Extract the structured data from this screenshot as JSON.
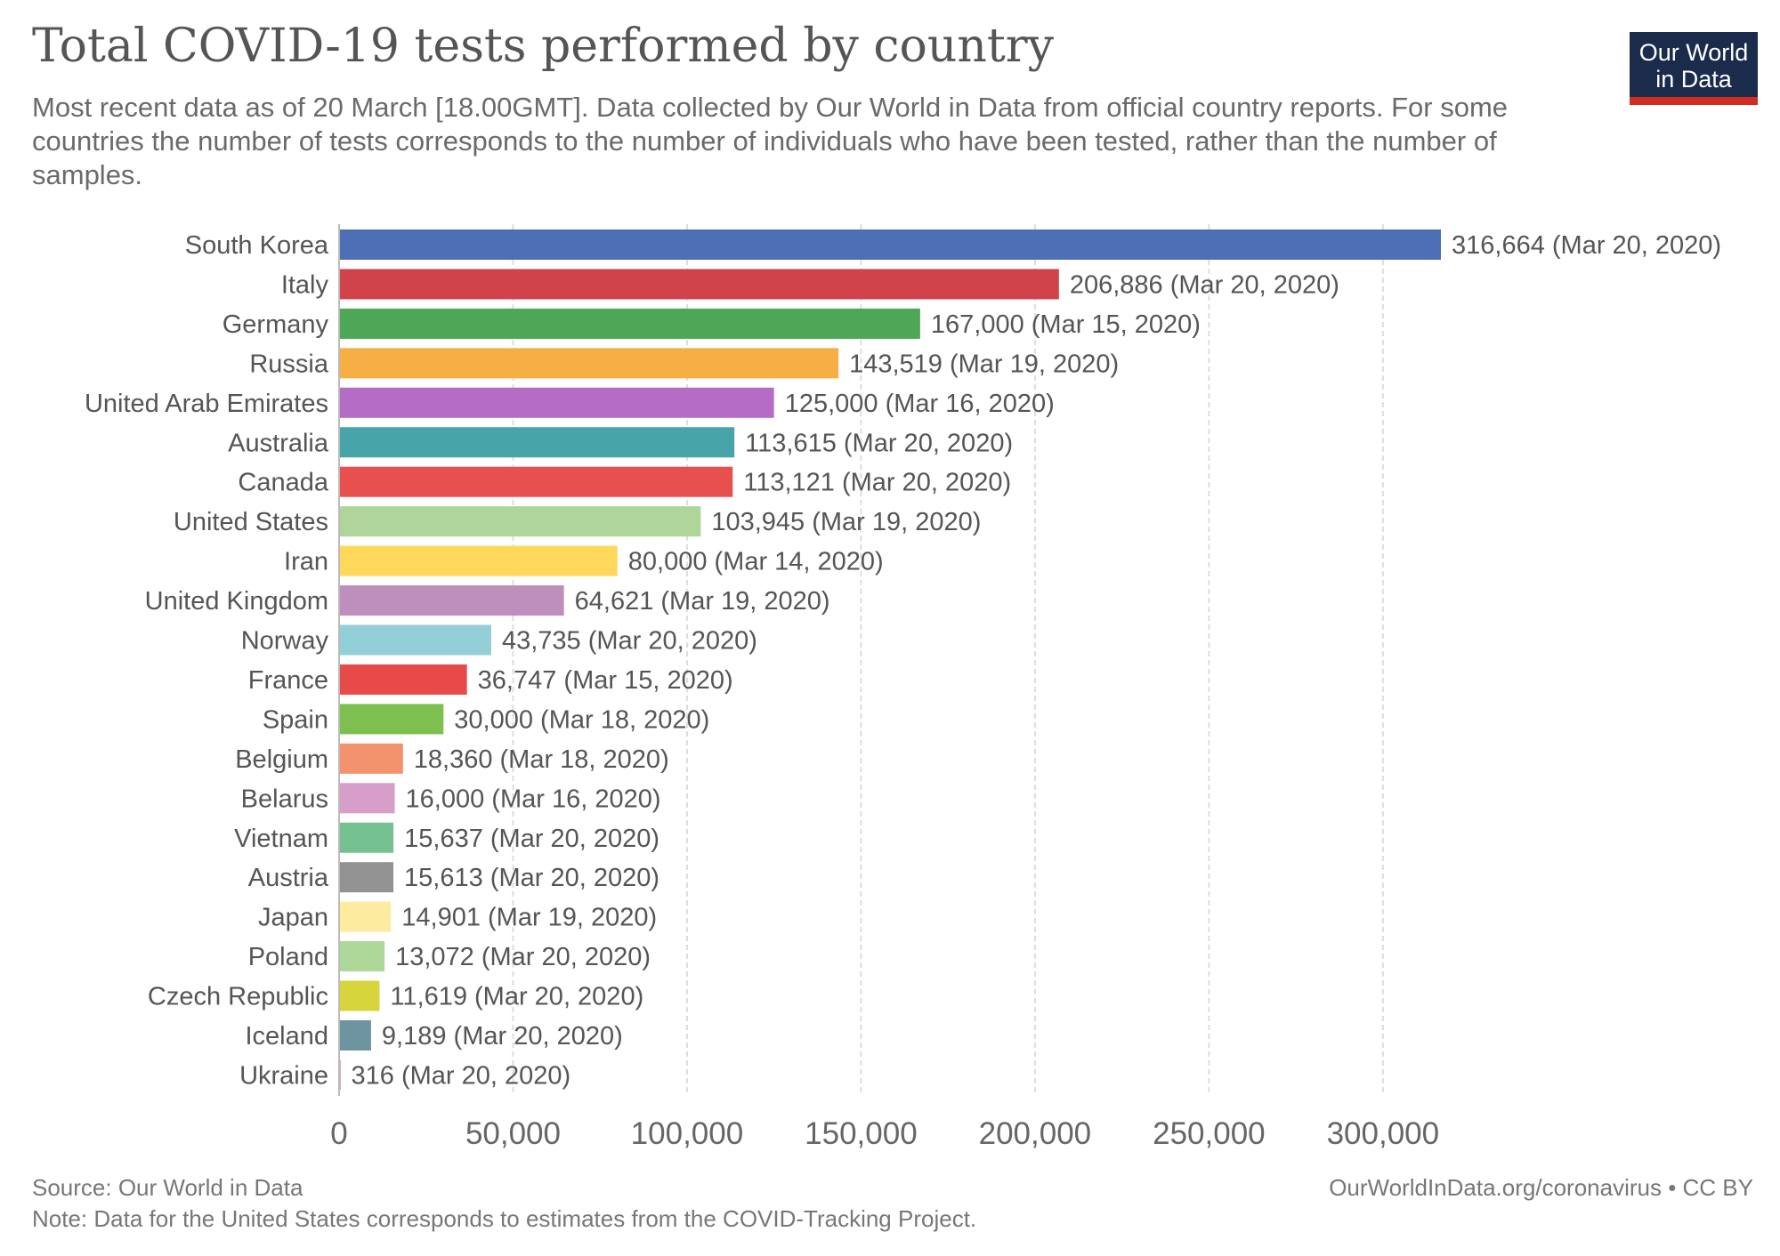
{
  "header": {
    "title": "Total COVID-19 tests performed by country",
    "subtitle": "Most recent data as of 20 March [18.00GMT]. Data collected by Our World in Data from official country reports. For some countries the number of tests corresponds to the number of individuals who have been tested, rather than the number of samples."
  },
  "logo": {
    "line1": "Our World",
    "line2": "in Data",
    "bg_color": "#1a2b4c",
    "accent_color": "#d42b21"
  },
  "footer": {
    "source": "Source: Our World in Data",
    "note": "Note: Data for the United States corresponds to estimates from the COVID-Tracking Project.",
    "link": "OurWorldInData.org/coronavirus • CC BY"
  },
  "chart_data": {
    "type": "bar",
    "orientation": "horizontal",
    "xlim": [
      0,
      316664
    ],
    "xticks": [
      0,
      50000,
      100000,
      150000,
      200000,
      250000,
      300000
    ],
    "xtick_labels": [
      "0",
      "50,000",
      "100,000",
      "150,000",
      "200,000",
      "250,000",
      "300,000"
    ],
    "grid": "vertical dashed",
    "bars": [
      {
        "category": "South Korea",
        "value": 316664,
        "label": "316,664 (Mar 20, 2020)",
        "color": "#4c6fb5"
      },
      {
        "category": "Italy",
        "value": 206886,
        "label": "206,886 (Mar 20, 2020)",
        "color": "#d1434b"
      },
      {
        "category": "Germany",
        "value": 167000,
        "label": "167,000 (Mar 15, 2020)",
        "color": "#4ea756"
      },
      {
        "category": "Russia",
        "value": 143519,
        "label": "143,519 (Mar 19, 2020)",
        "color": "#f7ae45"
      },
      {
        "category": "United Arab Emirates",
        "value": 125000,
        "label": "125,000 (Mar 16, 2020)",
        "color": "#b46cc6"
      },
      {
        "category": "Australia",
        "value": 113615,
        "label": "113,615 (Mar 20, 2020)",
        "color": "#47a4a8"
      },
      {
        "category": "Canada",
        "value": 113121,
        "label": "113,121 (Mar 20, 2020)",
        "color": "#e8504f"
      },
      {
        "category": "United States",
        "value": 103945,
        "label": "103,945 (Mar 19, 2020)",
        "color": "#afd59b"
      },
      {
        "category": "Iran",
        "value": 80000,
        "label": "80,000 (Mar 14, 2020)",
        "color": "#fdd85a"
      },
      {
        "category": "United Kingdom",
        "value": 64621,
        "label": "64,621 (Mar 19, 2020)",
        "color": "#be8ebc"
      },
      {
        "category": "Norway",
        "value": 43735,
        "label": "43,735 (Mar 20, 2020)",
        "color": "#93cfd7"
      },
      {
        "category": "France",
        "value": 36747,
        "label": "36,747 (Mar 15, 2020)",
        "color": "#e84a4a"
      },
      {
        "category": "Spain",
        "value": 30000,
        "label": "30,000 (Mar 18, 2020)",
        "color": "#7ec04f"
      },
      {
        "category": "Belgium",
        "value": 18360,
        "label": "18,360 (Mar 18, 2020)",
        "color": "#f2936e"
      },
      {
        "category": "Belarus",
        "value": 16000,
        "label": "16,000 (Mar 16, 2020)",
        "color": "#d69ec8"
      },
      {
        "category": "Vietnam",
        "value": 15637,
        "label": "15,637 (Mar 20, 2020)",
        "color": "#76c192"
      },
      {
        "category": "Austria",
        "value": 15613,
        "label": "15,613 (Mar 20, 2020)",
        "color": "#939393"
      },
      {
        "category": "Japan",
        "value": 14901,
        "label": "14,901 (Mar 19, 2020)",
        "color": "#fdeca0"
      },
      {
        "category": "Poland",
        "value": 13072,
        "label": "13,072 (Mar 20, 2020)",
        "color": "#aed89a"
      },
      {
        "category": "Czech Republic",
        "value": 11619,
        "label": "11,619 (Mar 20, 2020)",
        "color": "#d6d53c"
      },
      {
        "category": "Iceland",
        "value": 9189,
        "label": "9,189 (Mar 20, 2020)",
        "color": "#6e949f"
      },
      {
        "category": "Ukraine",
        "value": 316,
        "label": "316 (Mar 20, 2020)",
        "color": "#c25a8a"
      }
    ]
  }
}
